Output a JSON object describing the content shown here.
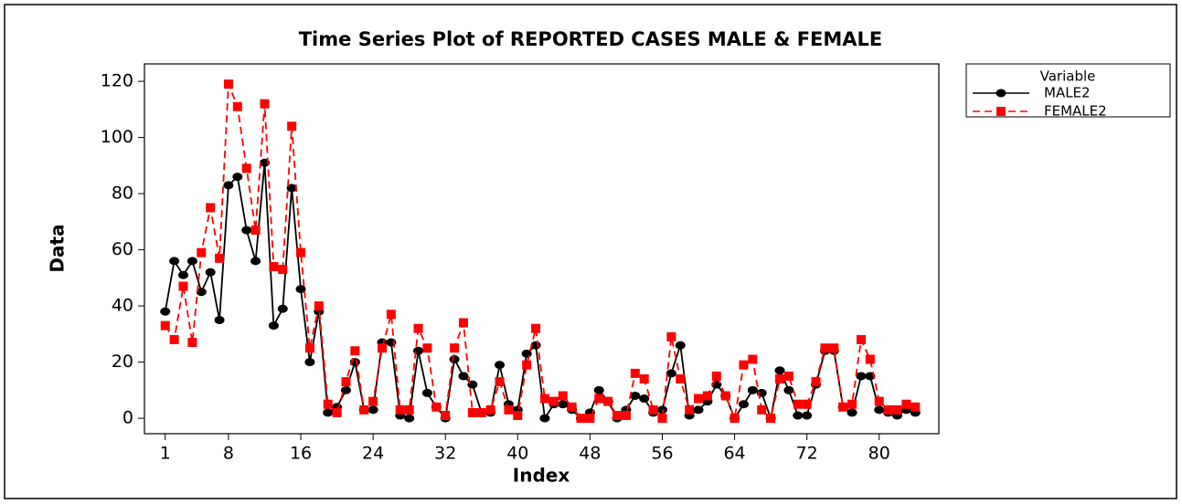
{
  "chart_data": {
    "type": "line",
    "title": "Time Series Plot of REPORTED CASES  MALE & FEMALE",
    "xlabel": "Index",
    "ylabel": "Data",
    "legend_title": "Variable",
    "legend": "right",
    "x": [
      1,
      2,
      3,
      4,
      5,
      6,
      7,
      8,
      9,
      10,
      11,
      12,
      13,
      14,
      15,
      16,
      17,
      18,
      19,
      20,
      21,
      22,
      23,
      24,
      25,
      26,
      27,
      28,
      29,
      30,
      31,
      32,
      33,
      34,
      35,
      36,
      37,
      38,
      39,
      40,
      41,
      42,
      43,
      44,
      45,
      46,
      47,
      48,
      49,
      50,
      51,
      52,
      53,
      54,
      55,
      56,
      57,
      58,
      59,
      60,
      61,
      62,
      63,
      64,
      65,
      66,
      67,
      68,
      69,
      70,
      71,
      72,
      73,
      74,
      75,
      76,
      77,
      78,
      79,
      80,
      81,
      82,
      83,
      84
    ],
    "series": [
      {
        "name": "MALE2",
        "color": "#000000",
        "marker": "circle",
        "dash": false,
        "values": [
          38,
          56,
          51,
          56,
          45,
          52,
          35,
          83,
          86,
          67,
          56,
          91,
          33,
          39,
          82,
          46,
          20,
          38,
          2,
          4,
          10,
          20,
          3,
          3,
          27,
          27,
          1,
          0,
          24,
          9,
          4,
          0,
          21,
          15,
          12,
          2,
          2,
          19,
          5,
          3,
          23,
          26,
          0,
          5,
          5,
          3,
          0,
          2,
          10,
          6,
          0,
          3,
          8,
          7,
          2,
          3,
          16,
          26,
          1,
          3,
          6,
          12,
          8,
          0,
          5,
          10,
          9,
          0,
          17,
          10,
          1,
          1,
          12,
          24,
          24,
          4,
          2,
          15,
          15,
          3,
          2,
          1,
          3,
          2
        ]
      },
      {
        "name": "FEMALE2",
        "color": "#ff0000",
        "marker": "square",
        "dash": true,
        "values": [
          33,
          28,
          47,
          27,
          59,
          75,
          57,
          119,
          111,
          89,
          67,
          112,
          54,
          53,
          104,
          59,
          25,
          40,
          5,
          2,
          13,
          24,
          3,
          6,
          25,
          37,
          3,
          3,
          32,
          25,
          4,
          1,
          25,
          34,
          2,
          2,
          3,
          13,
          3,
          1,
          19,
          32,
          7,
          6,
          8,
          4,
          0,
          0,
          7,
          6,
          1,
          1,
          16,
          14,
          3,
          0,
          29,
          14,
          3,
          7,
          8,
          15,
          8,
          0,
          19,
          21,
          3,
          0,
          14,
          15,
          5,
          5,
          13,
          25,
          25,
          4,
          5,
          28,
          21,
          6,
          3,
          3,
          5,
          4
        ]
      }
    ],
    "xlim": [
      -1.3,
      86.6
    ],
    "xticks": [
      1,
      8,
      16,
      24,
      32,
      40,
      48,
      56,
      64,
      72,
      80
    ],
    "ylim": [
      -5.5,
      126.2
    ],
    "yticks": [
      0,
      20,
      40,
      60,
      80,
      100,
      120
    ]
  }
}
